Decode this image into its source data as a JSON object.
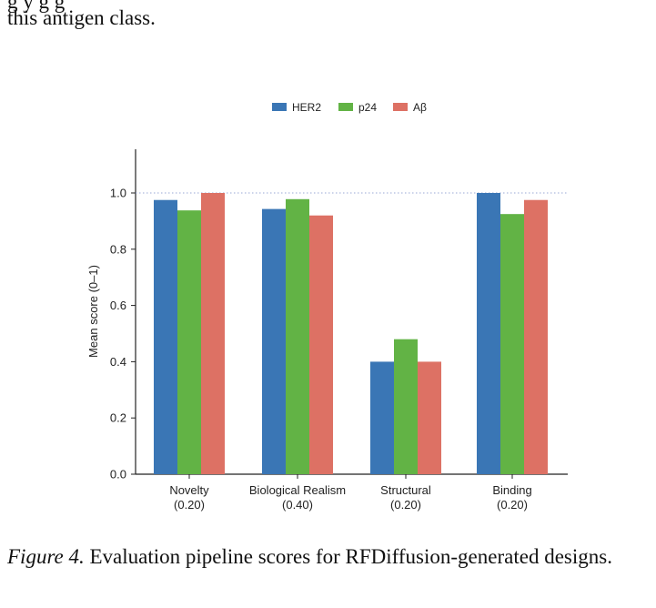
{
  "text_above": {
    "line1": "g     y   g                                                               g",
    "line2": "this antigen class."
  },
  "caption": {
    "figure_label": "Figure 4.",
    "text": "Evaluation pipeline scores for RFDiffusion-generated designs."
  },
  "chart_data": {
    "type": "bar",
    "ylabel": "Mean score (0–1)",
    "xlabel": "",
    "ylim": [
      0.0,
      1.15
    ],
    "yticks": [
      "0.0",
      "0.2",
      "0.4",
      "0.6",
      "0.8",
      "1.0"
    ],
    "reference_line": 1.0,
    "categories": [
      {
        "name": "Novelty",
        "weight": "(0.20)"
      },
      {
        "name": "Biological Realism",
        "weight": "(0.40)"
      },
      {
        "name": "Structural",
        "weight": "(0.20)"
      },
      {
        "name": "Binding",
        "weight": "(0.20)"
      }
    ],
    "series": [
      {
        "name": "HER2",
        "color": "#3a76b5",
        "values": [
          0.975,
          0.943,
          0.4,
          1.0
        ]
      },
      {
        "name": "p24",
        "color": "#62b345",
        "values": [
          0.938,
          0.978,
          0.48,
          0.925
        ]
      },
      {
        "name": "Aβ",
        "color": "#dd7164",
        "values": [
          1.0,
          0.92,
          0.4,
          0.975
        ]
      }
    ],
    "legend_position": "top-center",
    "grid": false
  }
}
